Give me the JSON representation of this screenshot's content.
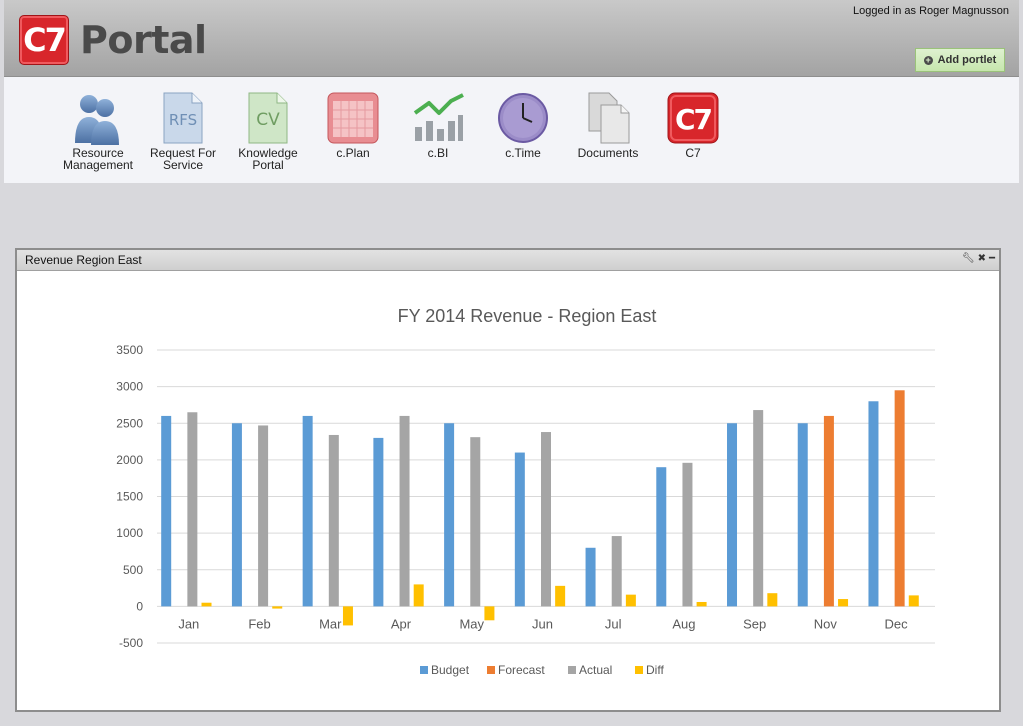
{
  "header": {
    "logo_badge": "C7",
    "logo_text": "Portal",
    "logged_in": "Logged in as Roger Magnusson",
    "add_portlet_label": "Add portlet"
  },
  "apps": [
    {
      "label": "Resource Management",
      "icon": "people-icon"
    },
    {
      "label": "Request For Service",
      "icon": "rfs-document-icon"
    },
    {
      "label": "Knowledge Portal",
      "icon": "cv-document-icon"
    },
    {
      "label": "c.Plan",
      "icon": "calendar-icon"
    },
    {
      "label": "c.BI",
      "icon": "bar-chart-trend-icon"
    },
    {
      "label": "c.Time",
      "icon": "clock-icon"
    },
    {
      "label": "Documents",
      "icon": "documents-icon"
    },
    {
      "label": "C7",
      "icon": "c7-logo-icon"
    }
  ],
  "icon_text": {
    "rfs": "RFS",
    "cv": "CV",
    "c7": "C7"
  },
  "portlet": {
    "title": "Revenue Region East"
  },
  "colors": {
    "budget": "#5b9bd5",
    "forecast": "#ed7d31",
    "actual": "#a5a5a5",
    "diff": "#ffc000"
  },
  "chart_data": {
    "type": "bar",
    "title": "FY 2014 Revenue - Region East",
    "categories": [
      "Jan",
      "Feb",
      "Mar",
      "Apr",
      "May",
      "Jun",
      "Jul",
      "Aug",
      "Sep",
      "Nov",
      "Dec"
    ],
    "ylim": [
      -500,
      3500
    ],
    "yticks": [
      -500,
      0,
      500,
      1000,
      1500,
      2000,
      2500,
      3000,
      3500
    ],
    "grid": true,
    "legend_position": "bottom",
    "series": [
      {
        "name": "Budget",
        "color": "#5b9bd5",
        "values": [
          2600,
          2500,
          2600,
          2300,
          2500,
          2100,
          800,
          1900,
          2500,
          2500,
          2800
        ]
      },
      {
        "name": "Forecast",
        "color": "#ed7d31",
        "values": [
          null,
          null,
          null,
          null,
          null,
          null,
          null,
          null,
          null,
          2600,
          2950
        ]
      },
      {
        "name": "Actual",
        "color": "#a5a5a5",
        "values": [
          2650,
          2470,
          2340,
          2600,
          2310,
          2380,
          960,
          1960,
          2680,
          null,
          null
        ]
      },
      {
        "name": "Diff",
        "color": "#ffc000",
        "values": [
          50,
          -30,
          -260,
          300,
          -190,
          280,
          160,
          60,
          180,
          100,
          150
        ]
      }
    ]
  }
}
